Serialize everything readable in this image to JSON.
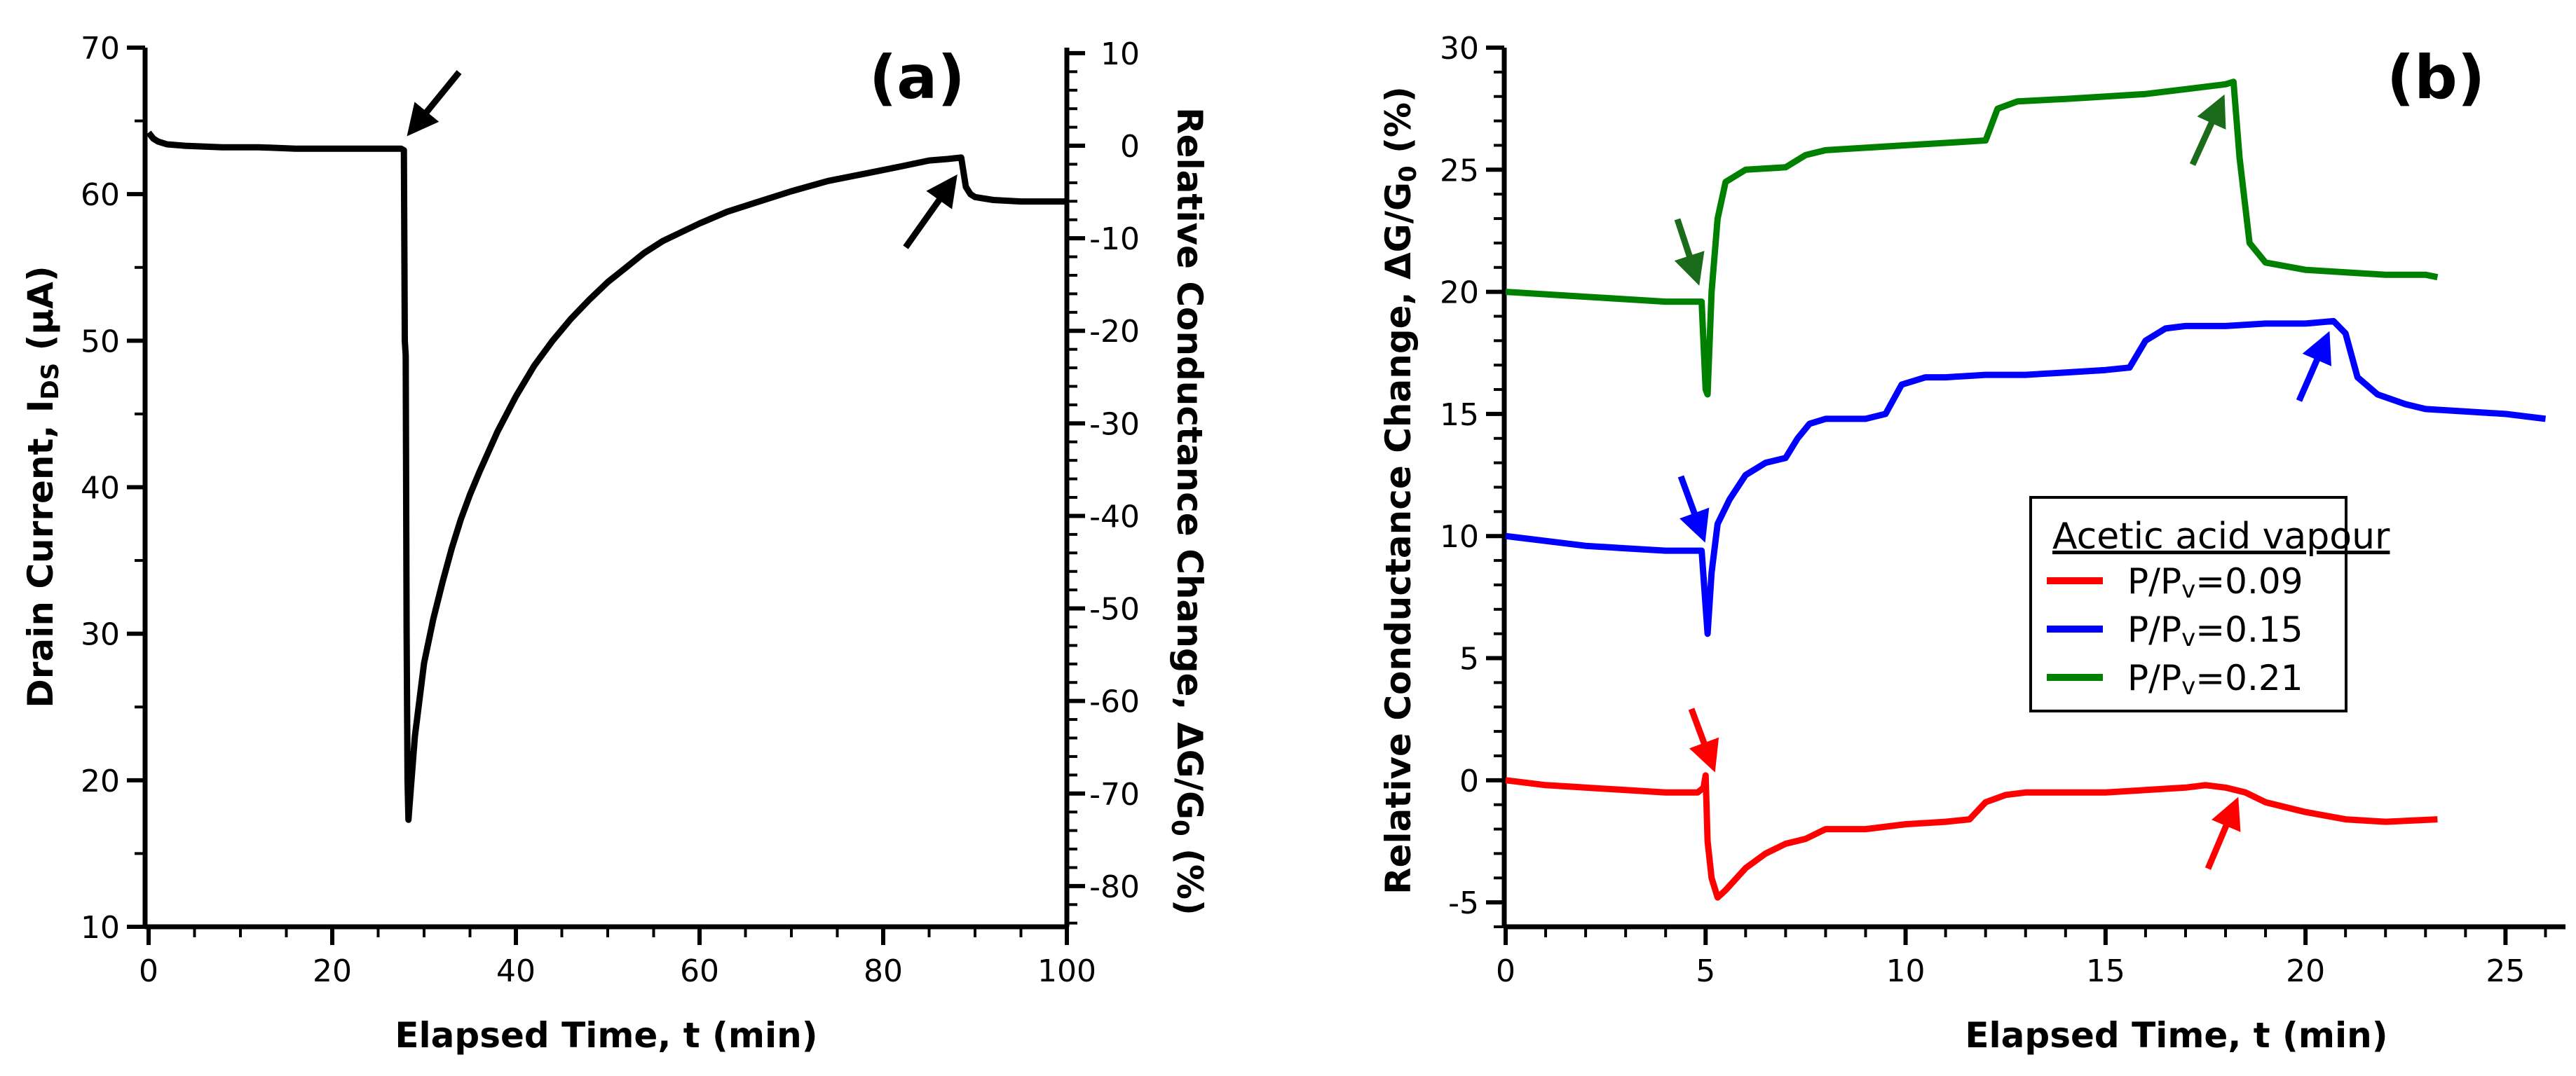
{
  "chart_data": [
    {
      "panel": "a",
      "type": "line",
      "panel_label": "(a)",
      "xlabel": "Elapsed Time, t (min)",
      "ylabel": "Drain Current, I",
      "ylabel_sub": "DS",
      "ylabel_unit": " (µA)",
      "y2label": "Relative Conductance Change, ΔG/G",
      "y2label_sub": "0",
      "y2label_unit": " (%)",
      "xlim": [
        0,
        100
      ],
      "ylim": [
        10,
        70
      ],
      "y2lim": [
        -84.4,
        10.6
      ],
      "xticks": [
        "0",
        "20",
        "40",
        "60",
        "80",
        "100"
      ],
      "yticks": [
        "10",
        "20",
        "30",
        "40",
        "50",
        "60",
        "70"
      ],
      "y2ticks": [
        "10",
        "0",
        "-10",
        "-20",
        "-30",
        "-40",
        "-50",
        "-60",
        "-70",
        "-80"
      ],
      "grid": false,
      "color": "#000000",
      "series": [
        {
          "name": "Drain current",
          "x": [
            0,
            0.5,
            1,
            2,
            4,
            8,
            12,
            16,
            20,
            24,
            26,
            27.5,
            27.8,
            27.9,
            28.0,
            28.1,
            28.2,
            28.3,
            28.5,
            29,
            30,
            31,
            32,
            33,
            34,
            35,
            36,
            38,
            40,
            42,
            44,
            46,
            48,
            50,
            52,
            54,
            56,
            58,
            60,
            63,
            66,
            70,
            74,
            78,
            82,
            85,
            87,
            88.5,
            89,
            89.5,
            90,
            92,
            95,
            98,
            100
          ],
          "y": [
            64.2,
            63.8,
            63.6,
            63.4,
            63.3,
            63.2,
            63.2,
            63.1,
            63.1,
            63.1,
            63.1,
            63.1,
            63.0,
            50.0,
            49.0,
            30.0,
            20.0,
            17.3,
            19.0,
            23.0,
            28.0,
            31.0,
            33.5,
            35.8,
            37.8,
            39.5,
            41.0,
            43.8,
            46.2,
            48.3,
            50.0,
            51.5,
            52.8,
            54.0,
            55.0,
            56.0,
            56.8,
            57.4,
            58.0,
            58.8,
            59.4,
            60.2,
            60.9,
            61.4,
            61.9,
            62.3,
            62.4,
            62.5,
            60.5,
            60.0,
            59.8,
            59.6,
            59.5,
            59.5,
            59.5
          ]
        }
      ],
      "annotations": [
        "arrow at injection start (~28 min)",
        "arrow at vapour removal (~88 min)"
      ]
    },
    {
      "panel": "b",
      "type": "line",
      "panel_label": "(b)",
      "xlabel": "Elapsed Time, t (min)",
      "ylabel": "Relative Conductance Change, ΔG/G",
      "ylabel_sub": "0",
      "ylabel_unit": " (%)",
      "xlim": [
        0,
        26.5
      ],
      "ylim": [
        -6,
        30
      ],
      "xticks": [
        "0",
        "5",
        "10",
        "15",
        "20",
        "25"
      ],
      "yticks": [
        "-5",
        "0",
        "5",
        "10",
        "15",
        "20",
        "25",
        "30"
      ],
      "grid": false,
      "legend": {
        "title": "Acetic acid vapour",
        "position": "center-right",
        "entries": [
          {
            "label": "P/P",
            "sub": "v",
            "rest": "=0.09",
            "color": "#ff0000"
          },
          {
            "label": "P/P",
            "sub": "v",
            "rest": "=0.15",
            "color": "#0000ff"
          },
          {
            "label": "P/P",
            "sub": "v",
            "rest": "=0.21",
            "color": "#008000"
          }
        ]
      },
      "series": [
        {
          "name": "P/Pv=0.09",
          "color": "#ff0000",
          "x": [
            0,
            1,
            2,
            3,
            4,
            4.8,
            4.95,
            5.0,
            5.05,
            5.15,
            5.3,
            5.5,
            6,
            6.5,
            7,
            7.5,
            8,
            9,
            10,
            11,
            11.6,
            12,
            12.5,
            13,
            14,
            15,
            16,
            17,
            17.5,
            18,
            18.5,
            19,
            20,
            21,
            22,
            23.3
          ],
          "y": [
            0,
            -0.2,
            -0.3,
            -0.4,
            -0.5,
            -0.5,
            -0.3,
            0.2,
            -2.5,
            -4.0,
            -4.8,
            -4.5,
            -3.6,
            -3.0,
            -2.6,
            -2.4,
            -2.0,
            -2.0,
            -1.8,
            -1.7,
            -1.6,
            -0.9,
            -0.6,
            -0.5,
            -0.5,
            -0.5,
            -0.4,
            -0.3,
            -0.2,
            -0.3,
            -0.5,
            -0.9,
            -1.3,
            -1.6,
            -1.7,
            -1.6
          ]
        },
        {
          "name": "P/Pv=0.15",
          "color": "#0000ff",
          "x": [
            0,
            1,
            2,
            3,
            4,
            4.9,
            5.05,
            5.15,
            5.3,
            5.6,
            6,
            6.5,
            7,
            7.3,
            7.6,
            8,
            9,
            9.5,
            9.9,
            10.5,
            11,
            12,
            13,
            14,
            15,
            15.6,
            16,
            16.5,
            17,
            18,
            19,
            20,
            20.7,
            21.0,
            21.3,
            21.8,
            22.5,
            23,
            24,
            25,
            26
          ],
          "y": [
            10,
            9.8,
            9.6,
            9.5,
            9.4,
            9.4,
            6.0,
            8.5,
            10.5,
            11.5,
            12.5,
            13.0,
            13.2,
            14.0,
            14.6,
            14.8,
            14.8,
            15.0,
            16.2,
            16.5,
            16.5,
            16.6,
            16.6,
            16.7,
            16.8,
            16.9,
            18.0,
            18.5,
            18.6,
            18.6,
            18.7,
            18.7,
            18.8,
            18.3,
            16.5,
            15.8,
            15.4,
            15.2,
            15.1,
            15.0,
            14.8
          ]
        },
        {
          "name": "P/Pv=0.21",
          "color": "#008000",
          "x": [
            0,
            1,
            2,
            3,
            4,
            4.9,
            5.0,
            5.05,
            5.15,
            5.3,
            5.5,
            6,
            7,
            7.5,
            8,
            9,
            10,
            11,
            12,
            12.3,
            12.8,
            14,
            15,
            16,
            17,
            18,
            18.2,
            18.35,
            18.6,
            19,
            20,
            21,
            22,
            23,
            23.3
          ],
          "y": [
            20,
            19.9,
            19.8,
            19.7,
            19.6,
            19.6,
            16.0,
            15.8,
            20.0,
            23.0,
            24.5,
            25.0,
            25.1,
            25.6,
            25.8,
            25.9,
            26.0,
            26.1,
            26.2,
            27.5,
            27.8,
            27.9,
            28.0,
            28.1,
            28.3,
            28.5,
            28.6,
            25.5,
            22.0,
            21.2,
            20.9,
            20.8,
            20.7,
            20.7,
            20.6
          ]
        }
      ]
    }
  ]
}
